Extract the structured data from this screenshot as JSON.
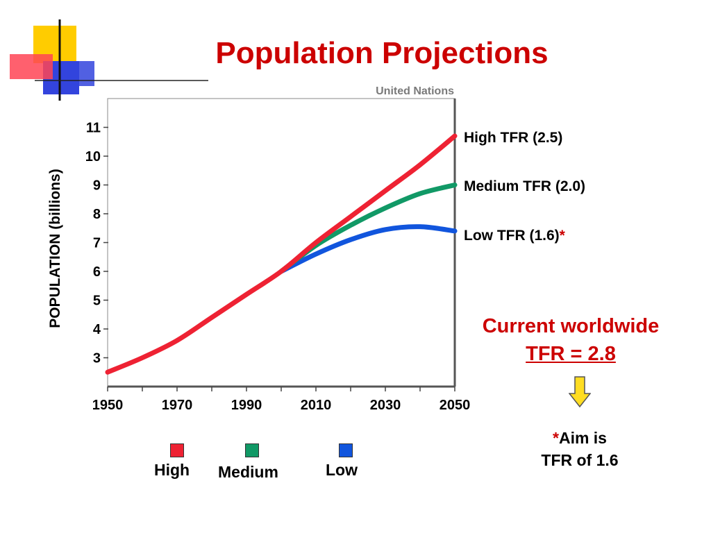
{
  "slide": {
    "title": "Population Projections",
    "source": "United Nations"
  },
  "colors": {
    "title": "#cc0000",
    "high": "#ee2233",
    "medium": "#119966",
    "low": "#1155dd",
    "arrow": "#ffdd22"
  },
  "logo_icon": "stacked-squares-logo-icon",
  "chart_data": {
    "type": "line",
    "ylabel": "POPULATION (billions)",
    "xlabel": "",
    "xlim": [
      1950,
      2050
    ],
    "ylim": [
      2,
      12
    ],
    "x_ticks": [
      "1950",
      "1970",
      "1990",
      "2010",
      "2030",
      "2050"
    ],
    "y_ticks": [
      "3",
      "4",
      "5",
      "6",
      "7",
      "8",
      "9",
      "10",
      "11"
    ],
    "grid": false,
    "series": [
      {
        "name": "High TFR (2.5)",
        "key": "high",
        "color": "#ee2233",
        "x": [
          1950,
          1960,
          1970,
          1980,
          1990,
          2000,
          2010,
          2020,
          2030,
          2040,
          2050
        ],
        "y": [
          2.5,
          3.0,
          3.6,
          4.4,
          5.2,
          6.0,
          7.0,
          7.9,
          8.8,
          9.7,
          10.7
        ]
      },
      {
        "name": "Medium TFR (2.0)",
        "key": "medium",
        "color": "#119966",
        "x": [
          2000,
          2010,
          2020,
          2030,
          2040,
          2050
        ],
        "y": [
          6.0,
          6.9,
          7.6,
          8.2,
          8.7,
          9.0
        ]
      },
      {
        "name": "Low TFR (1.6)",
        "key": "low",
        "color": "#1155dd",
        "x": [
          2000,
          2010,
          2020,
          2030,
          2040,
          2050
        ],
        "y": [
          6.0,
          6.6,
          7.1,
          7.45,
          7.55,
          7.4
        ]
      }
    ],
    "series_labels": {
      "high": "High TFR (2.5)",
      "medium": "Medium TFR (2.0)",
      "low": "Low TFR (1.6)",
      "low_asterisk": "*"
    }
  },
  "legend": {
    "high": "High",
    "medium": "Medium",
    "low": "Low"
  },
  "note": {
    "line1": "Current worldwide",
    "line2": "TFR = 2.8",
    "aim_asterisk": "*",
    "aim_line1": "Aim is",
    "aim_line2": "TFR of 1.6"
  }
}
